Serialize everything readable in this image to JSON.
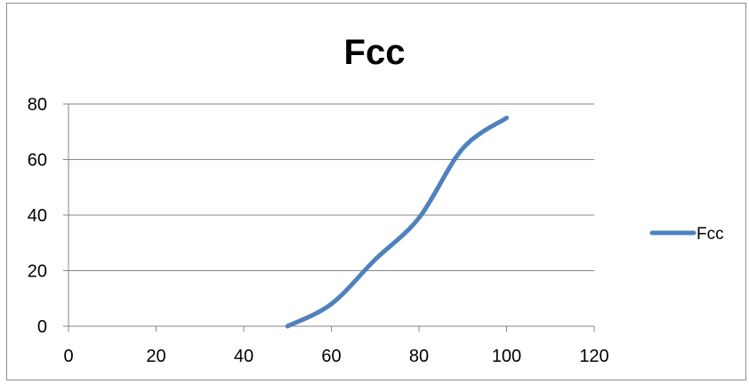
{
  "chart_data": {
    "type": "line",
    "title": "Fcc",
    "xlabel": "",
    "ylabel": "",
    "xlim": [
      0,
      120
    ],
    "ylim": [
      0,
      80
    ],
    "x_ticks": [
      "0",
      "20",
      "40",
      "60",
      "80",
      "100",
      "120"
    ],
    "y_ticks": [
      "0",
      "20",
      "40",
      "60",
      "80"
    ],
    "grid": "horizontal",
    "legend": "right",
    "series": [
      {
        "name": "Fcc",
        "color": "#4F81BD",
        "smooth": true,
        "points": [
          {
            "x": 50,
            "y": 0
          },
          {
            "x": 60,
            "y": 8
          },
          {
            "x": 70,
            "y": 24
          },
          {
            "x": 80,
            "y": 39
          },
          {
            "x": 90,
            "y": 64
          },
          {
            "x": 100,
            "y": 75
          }
        ]
      }
    ]
  }
}
